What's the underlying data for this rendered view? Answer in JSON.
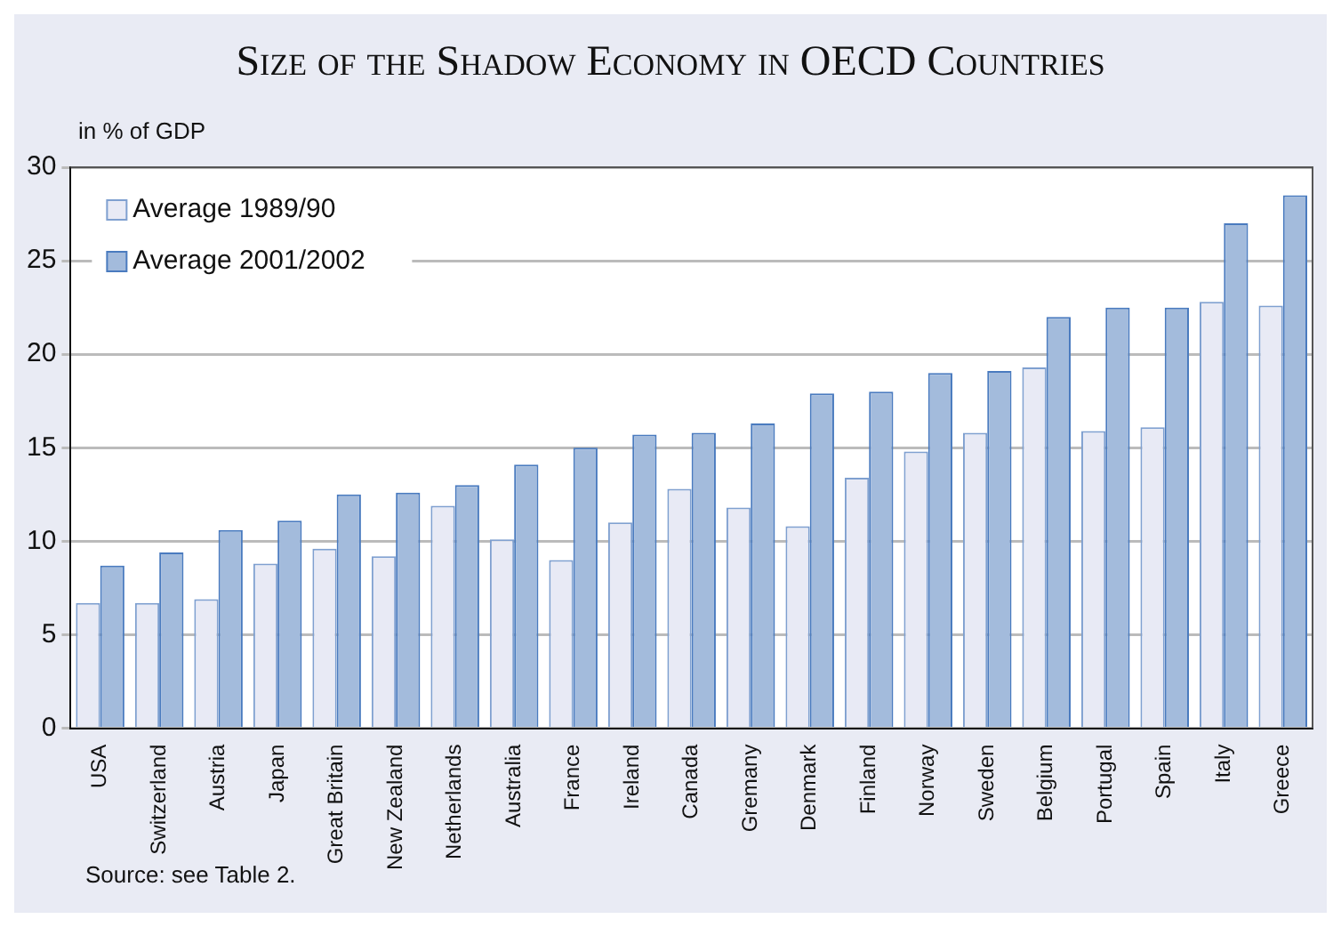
{
  "chart_data": {
    "type": "bar",
    "title": "Size of the Shadow Economy in OECD Countries",
    "ylabel": "in % of GDP",
    "categories": [
      "USA",
      "Switzerland",
      "Austria",
      "Japan",
      "Great Britain",
      "New Zealand",
      "Netherlands",
      "Australia",
      "France",
      "Ireland",
      "Canada",
      "Gremany",
      "Denmark",
      "Finland",
      "Norway",
      "Sweden",
      "Belgium",
      "Portugal",
      "Spain",
      "Italy",
      "Greece"
    ],
    "series": [
      {
        "name": "Average 1989/90",
        "color": "#e8eaf5",
        "values": [
          6.7,
          6.7,
          6.9,
          8.8,
          9.6,
          9.2,
          11.9,
          10.1,
          9.0,
          11.0,
          12.8,
          11.8,
          10.8,
          13.4,
          14.8,
          15.8,
          19.3,
          15.9,
          16.1,
          22.8,
          22.6
        ]
      },
      {
        "name": "Average 2001/2002",
        "color": "#a3bbdc",
        "values": [
          8.7,
          9.4,
          10.6,
          11.1,
          12.5,
          12.6,
          13.0,
          14.1,
          15.0,
          15.7,
          15.8,
          16.3,
          17.9,
          18.0,
          19.0,
          19.1,
          22.0,
          22.5,
          22.5,
          27.0,
          28.5
        ]
      }
    ],
    "ylim": [
      0,
      30
    ],
    "yticks": [
      0,
      5,
      10,
      15,
      20,
      25,
      30
    ],
    "grid": "y",
    "legend": "top left",
    "annotations": [
      "Source: see Table 2."
    ]
  }
}
